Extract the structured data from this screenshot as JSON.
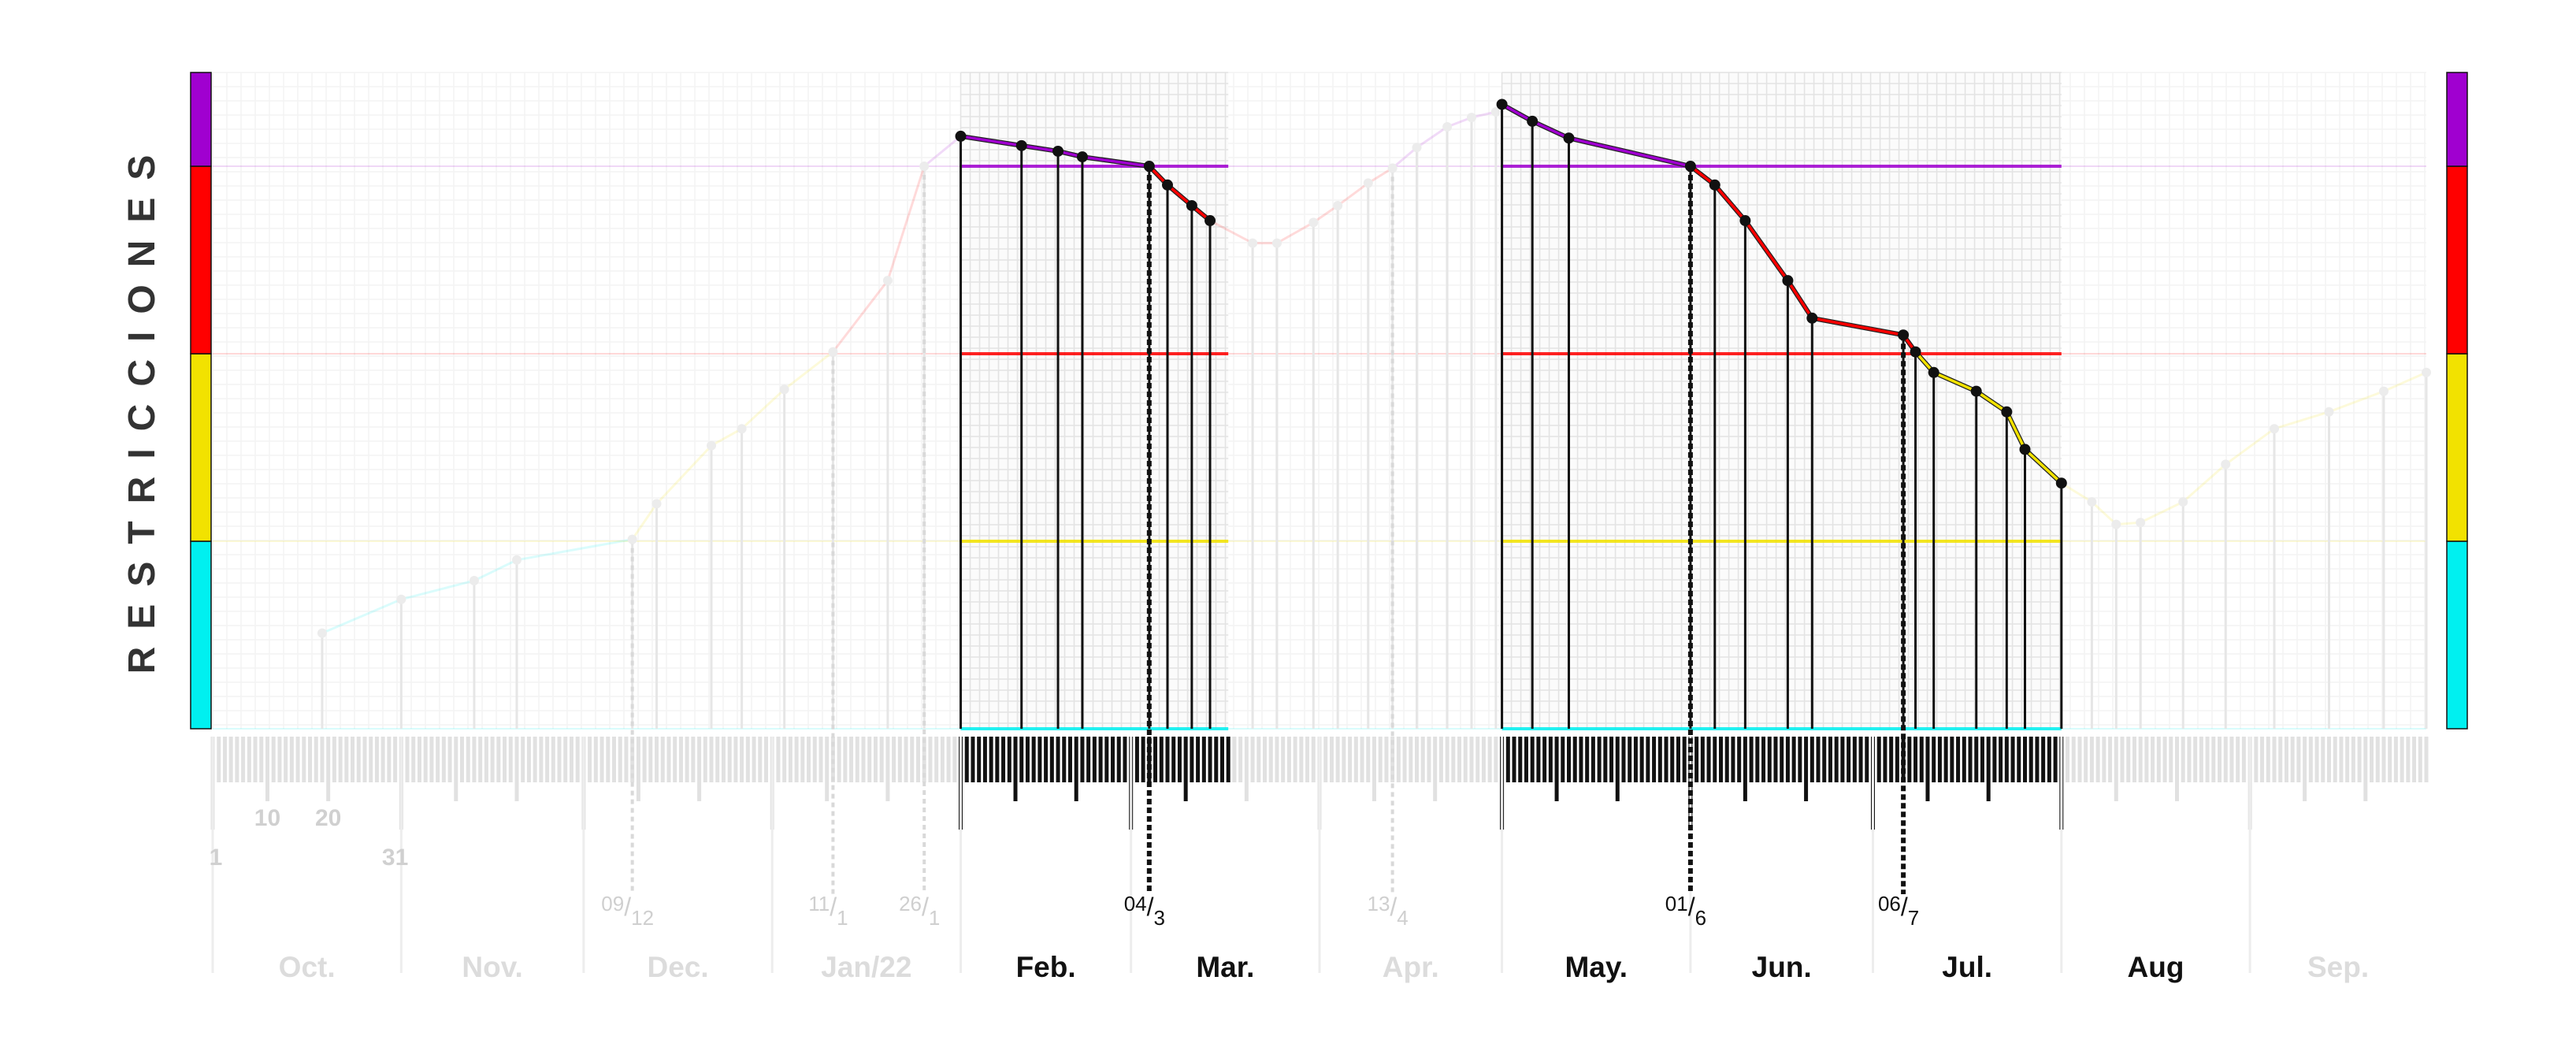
{
  "chart_data": {
    "type": "line",
    "ylabel": "RESTRICCIONES",
    "levels": [
      {
        "color": "#00f0f0",
        "from": 0,
        "to": 1
      },
      {
        "color": "#f2e200",
        "from": 1,
        "to": 2
      },
      {
        "color": "#ff0000",
        "from": 2,
        "to": 3
      },
      {
        "color": "#a000d0",
        "from": 3,
        "to": 3.5
      }
    ],
    "ylim": [
      0,
      3.5
    ],
    "xlim": [
      "2021-10-01",
      "2022-09-30"
    ],
    "months": [
      {
        "label": "Oct.",
        "start": "2021-10-01",
        "highlight": false
      },
      {
        "label": "Nov.",
        "start": "2021-11-01",
        "highlight": false
      },
      {
        "label": "Dec.",
        "start": "2021-12-01",
        "highlight": false
      },
      {
        "label": "Jan/22",
        "start": "2022-01-01",
        "highlight": false
      },
      {
        "label": "Feb.",
        "start": "2022-02-01",
        "highlight": true
      },
      {
        "label": "Mar.",
        "start": "2022-03-01",
        "highlight": true
      },
      {
        "label": "Apr.",
        "start": "2022-04-01",
        "highlight": false
      },
      {
        "label": "May.",
        "start": "2022-05-01",
        "highlight": true
      },
      {
        "label": "Jun.",
        "start": "2022-06-01",
        "highlight": true
      },
      {
        "label": "Jul.",
        "start": "2022-07-01",
        "highlight": true
      },
      {
        "label": "Aug",
        "start": "2022-08-01",
        "highlight": true
      },
      {
        "label": "Sep.",
        "start": "2022-09-01",
        "highlight": false
      }
    ],
    "day_labels": [
      {
        "text": "1",
        "date": "2021-10-01"
      },
      {
        "text": "10",
        "date": "2021-10-10"
      },
      {
        "text": "20",
        "date": "2021-10-20"
      },
      {
        "text": "31",
        "date": "2021-10-31"
      }
    ],
    "highlight_ranges": [
      [
        "2022-02-01",
        "2022-03-17"
      ],
      [
        "2022-05-01",
        "2022-08-01"
      ]
    ],
    "date_markers": [
      {
        "day": "09",
        "month": "12",
        "date": "2021-12-09",
        "highlight": false
      },
      {
        "day": "11",
        "month": "1",
        "date": "2022-01-11",
        "highlight": false
      },
      {
        "day": "26",
        "month": "1",
        "date": "2022-01-26",
        "highlight": false
      },
      {
        "day": "04",
        "month": "3",
        "date": "2022-03-04",
        "highlight": true
      },
      {
        "day": "13",
        "month": "4",
        "date": "2022-04-13",
        "highlight": false
      },
      {
        "day": "01",
        "month": "6",
        "date": "2022-06-01",
        "highlight": true
      },
      {
        "day": "06",
        "month": "7",
        "date": "2022-07-06",
        "highlight": true
      }
    ],
    "points": [
      [
        "2021-10-19",
        0.51
      ],
      [
        "2021-11-01",
        0.69
      ],
      [
        "2021-11-13",
        0.79
      ],
      [
        "2021-11-20",
        0.9
      ],
      [
        "2021-12-09",
        1.01
      ],
      [
        "2021-12-13",
        1.2
      ],
      [
        "2021-12-22",
        1.51
      ],
      [
        "2021-12-27",
        1.6
      ],
      [
        "2022-01-03",
        1.81
      ],
      [
        "2022-01-11",
        2.01
      ],
      [
        "2022-01-20",
        2.39
      ],
      [
        "2022-01-26",
        3.0
      ],
      [
        "2022-02-01",
        3.16
      ],
      [
        "2022-02-11",
        3.11
      ],
      [
        "2022-02-17",
        3.08
      ],
      [
        "2022-02-21",
        3.05
      ],
      [
        "2022-03-04",
        3.0
      ],
      [
        "2022-03-07",
        2.9
      ],
      [
        "2022-03-11",
        2.79
      ],
      [
        "2022-03-14",
        2.71
      ],
      [
        "2022-03-21",
        2.59
      ],
      [
        "2022-03-25",
        2.59
      ],
      [
        "2022-03-31",
        2.7
      ],
      [
        "2022-04-04",
        2.79
      ],
      [
        "2022-04-09",
        2.91
      ],
      [
        "2022-04-13",
        2.99
      ],
      [
        "2022-04-17",
        3.1
      ],
      [
        "2022-04-22",
        3.21
      ],
      [
        "2022-04-26",
        3.26
      ],
      [
        "2022-04-30",
        3.29
      ],
      [
        "2022-05-01",
        3.33
      ],
      [
        "2022-05-06",
        3.24
      ],
      [
        "2022-05-12",
        3.15
      ],
      [
        "2022-06-01",
        3.0
      ],
      [
        "2022-06-05",
        2.9
      ],
      [
        "2022-06-10",
        2.71
      ],
      [
        "2022-06-17",
        2.39
      ],
      [
        "2022-06-21",
        2.19
      ],
      [
        "2022-07-06",
        2.1
      ],
      [
        "2022-07-08",
        2.01
      ],
      [
        "2022-07-11",
        1.9
      ],
      [
        "2022-07-18",
        1.8
      ],
      [
        "2022-07-23",
        1.69
      ],
      [
        "2022-07-26",
        1.49
      ],
      [
        "2022-08-01",
        1.31
      ],
      [
        "2022-08-06",
        1.21
      ],
      [
        "2022-08-10",
        1.09
      ],
      [
        "2022-08-14",
        1.1
      ],
      [
        "2022-08-21",
        1.21
      ],
      [
        "2022-08-28",
        1.41
      ],
      [
        "2022-09-05",
        1.6
      ],
      [
        "2022-09-14",
        1.69
      ],
      [
        "2022-09-23",
        1.8
      ],
      [
        "2022-09-30",
        1.9
      ]
    ]
  }
}
